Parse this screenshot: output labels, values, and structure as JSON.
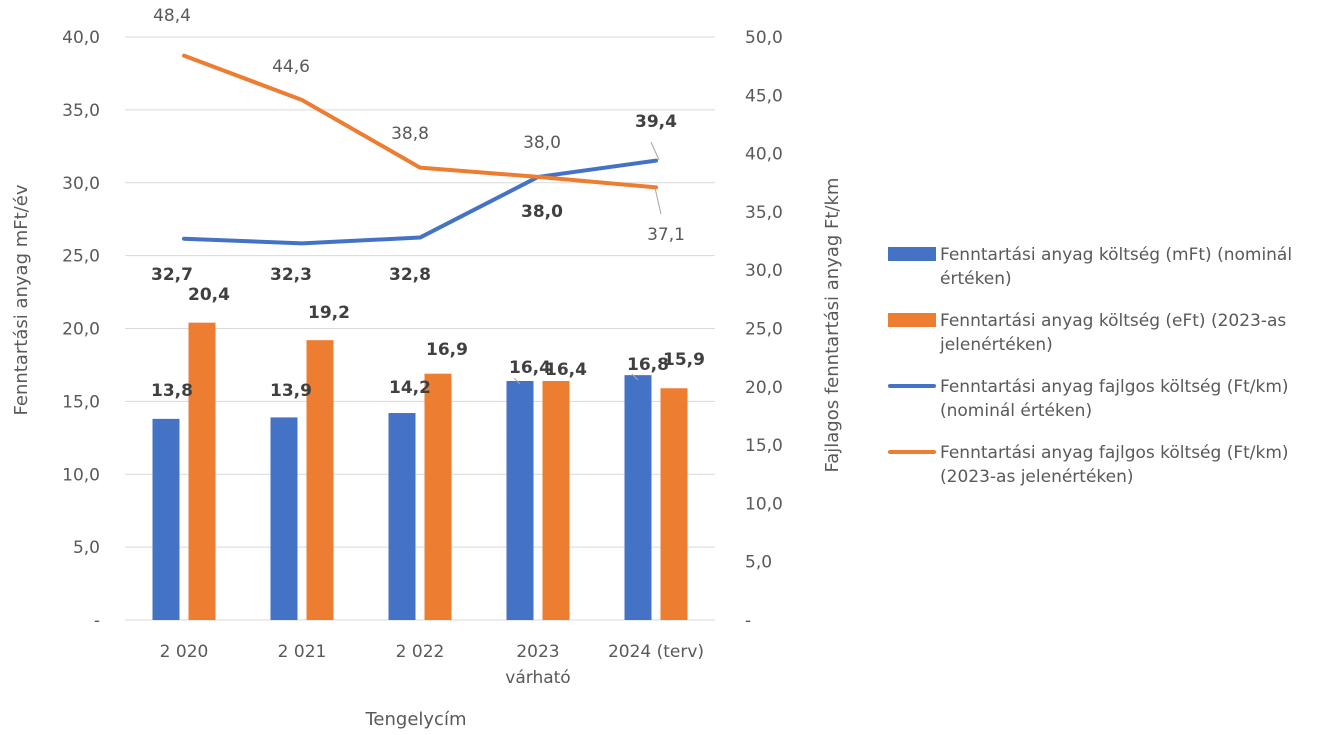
{
  "chart_data": {
    "type": "bar",
    "categories": [
      "2 020",
      "2 021",
      "2 022",
      "2023\nvárható",
      "2024 (terv)"
    ],
    "xlabel": "Tengelycím",
    "ylabel_left": "Fenntartási anyag mFt/év",
    "ylabel_right": "Fajlagos fenntartási anyag Ft/km",
    "ylim_left": [
      0,
      40
    ],
    "ylim_right": [
      0,
      50
    ],
    "yticks_left": [
      "-",
      "5,0",
      "10,0",
      "15,0",
      "20,0",
      "25,0",
      "30,0",
      "35,0",
      "40,0"
    ],
    "yticks_right": [
      "-",
      "5,0",
      "10,0",
      "15,0",
      "20,0",
      "25,0",
      "30,0",
      "35,0",
      "40,0",
      "45,0",
      "50,0"
    ],
    "grid": true,
    "legend_position": "right",
    "series": [
      {
        "name": "Fenntartási anyag költség (mFt) (nominál értéken)",
        "kind": "bar",
        "axis": "left",
        "color": "#4472C4",
        "values": [
          13.8,
          13.9,
          14.2,
          16.4,
          16.8
        ],
        "labels": [
          "13,8",
          "13,9",
          "14,2",
          "16,4",
          "16,8"
        ]
      },
      {
        "name": "Fenntartási anyag költség (eFt) (2023-as jelenértéken)",
        "kind": "bar",
        "axis": "left",
        "color": "#ED7D31",
        "values": [
          20.4,
          19.2,
          16.9,
          16.4,
          15.9
        ],
        "labels": [
          "20,4",
          "19,2",
          "16,9",
          "16,4",
          "15,9"
        ]
      },
      {
        "name": "Fenntartási anyag fajlgos költség (Ft/km) (nominál értéken)",
        "kind": "line",
        "axis": "right",
        "color": "#4472C4",
        "values": [
          32.7,
          32.3,
          32.8,
          38.0,
          39.4
        ],
        "labels": [
          "32,7",
          "32,3",
          "32,8",
          "38,0",
          "39,4"
        ]
      },
      {
        "name": "Fenntartási anyag fajlgos költség (Ft/km) (2023-as jelenértéken)",
        "kind": "line",
        "axis": "right",
        "color": "#ED7D31",
        "values": [
          48.4,
          44.6,
          38.8,
          38.0,
          37.1
        ],
        "labels": [
          "48,4",
          "44,6",
          "38,8",
          "38,0",
          "37,1"
        ]
      }
    ]
  },
  "legend": [
    {
      "swatch": "bar",
      "color": "#4472C4",
      "label": "Fenntartási anyag költség (mFt) (nominál értéken)"
    },
    {
      "swatch": "bar",
      "color": "#ED7D31",
      "label": "Fenntartási anyag költség (eFt) (2023-as jelenértéken)"
    },
    {
      "swatch": "line",
      "color": "#4472C4",
      "label": "Fenntartási anyag fajlgos költség (Ft/km) (nominál értéken)"
    },
    {
      "swatch": "line",
      "color": "#ED7D31",
      "label": "Fenntartási anyag fajlgos költség (Ft/km) (2023-as jelenértéken)"
    }
  ]
}
